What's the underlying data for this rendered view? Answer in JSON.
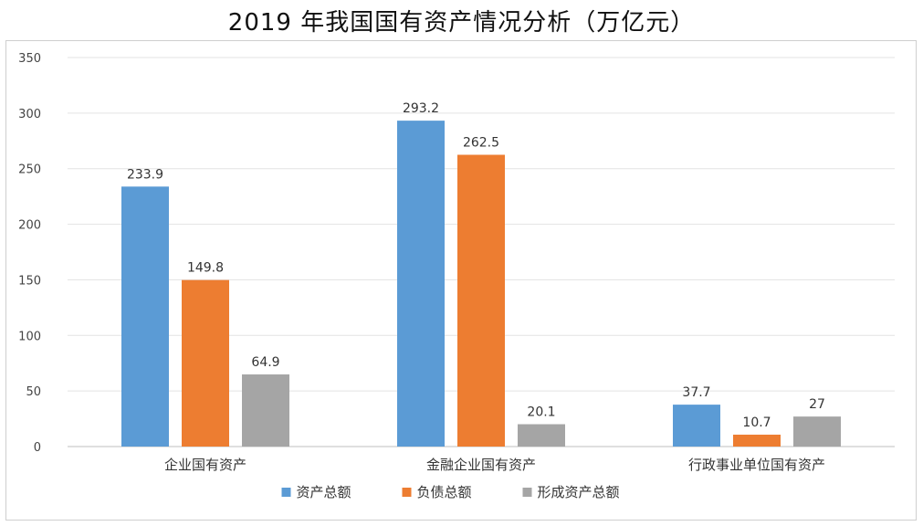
{
  "chart_data": {
    "type": "bar",
    "title": "2019 年我国国有资产情况分析（万亿元）",
    "categories": [
      "企业国有资产",
      "金融企业国有资产",
      "行政事业单位国有资产"
    ],
    "series": [
      {
        "name": "资产总额",
        "color": "#5b9bd5",
        "values": [
          233.9,
          293.2,
          37.7
        ]
      },
      {
        "name": "负债总额",
        "color": "#ed7d31",
        "values": [
          149.8,
          262.5,
          10.7
        ]
      },
      {
        "name": "形成资产总额",
        "color": "#a5a5a5",
        "values": [
          64.9,
          20.1,
          27
        ]
      }
    ],
    "ylim": [
      0,
      350
    ],
    "yticks": [
      0,
      50,
      100,
      150,
      200,
      250,
      300,
      350
    ],
    "grid": true,
    "legend": "bottom"
  }
}
